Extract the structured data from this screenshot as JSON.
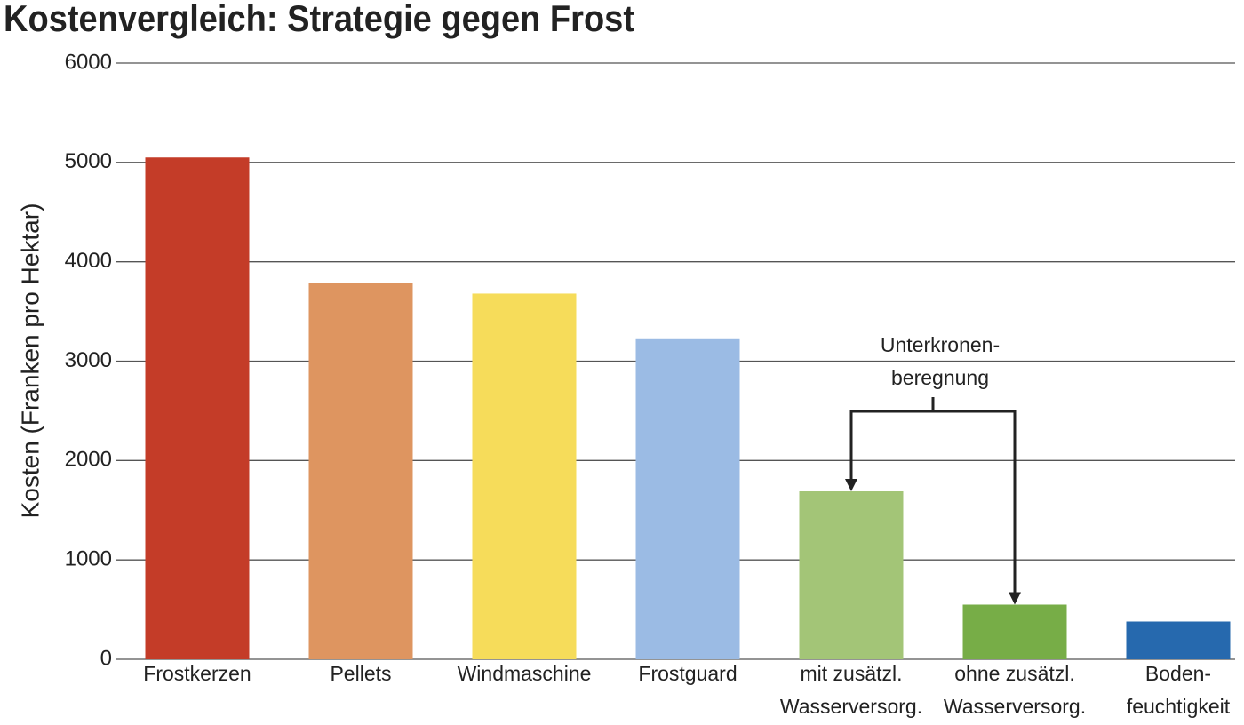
{
  "chart_data": {
    "type": "bar",
    "title": "Kostenvergleich: Strategie gegen Frost",
    "y_label": "Kosten (Franken pro Hektar)",
    "categories": [
      [
        "Frostkerzen"
      ],
      [
        "Pellets"
      ],
      [
        "Windmaschine"
      ],
      [
        "Frostguard"
      ],
      [
        "mit zusätzl.",
        "Wasserversorg."
      ],
      [
        "ohne zusätzl.",
        "Wasserversorg."
      ],
      [
        "Boden-",
        "feuchtigkeit"
      ]
    ],
    "values": [
      5050,
      3790,
      3680,
      3230,
      1690,
      550,
      380
    ],
    "colors": [
      "#c43c28",
      "#de9560",
      "#f6dc5a",
      "#9bbbe4",
      "#a3c577",
      "#77ad47",
      "#2669ae"
    ],
    "annotation": [
      "Unterkronen-",
      "beregnung"
    ],
    "ylim": [
      0,
      6000
    ],
    "yticks": [
      0,
      1000,
      2000,
      3000,
      4000,
      5000,
      6000
    ],
    "grid": true
  }
}
